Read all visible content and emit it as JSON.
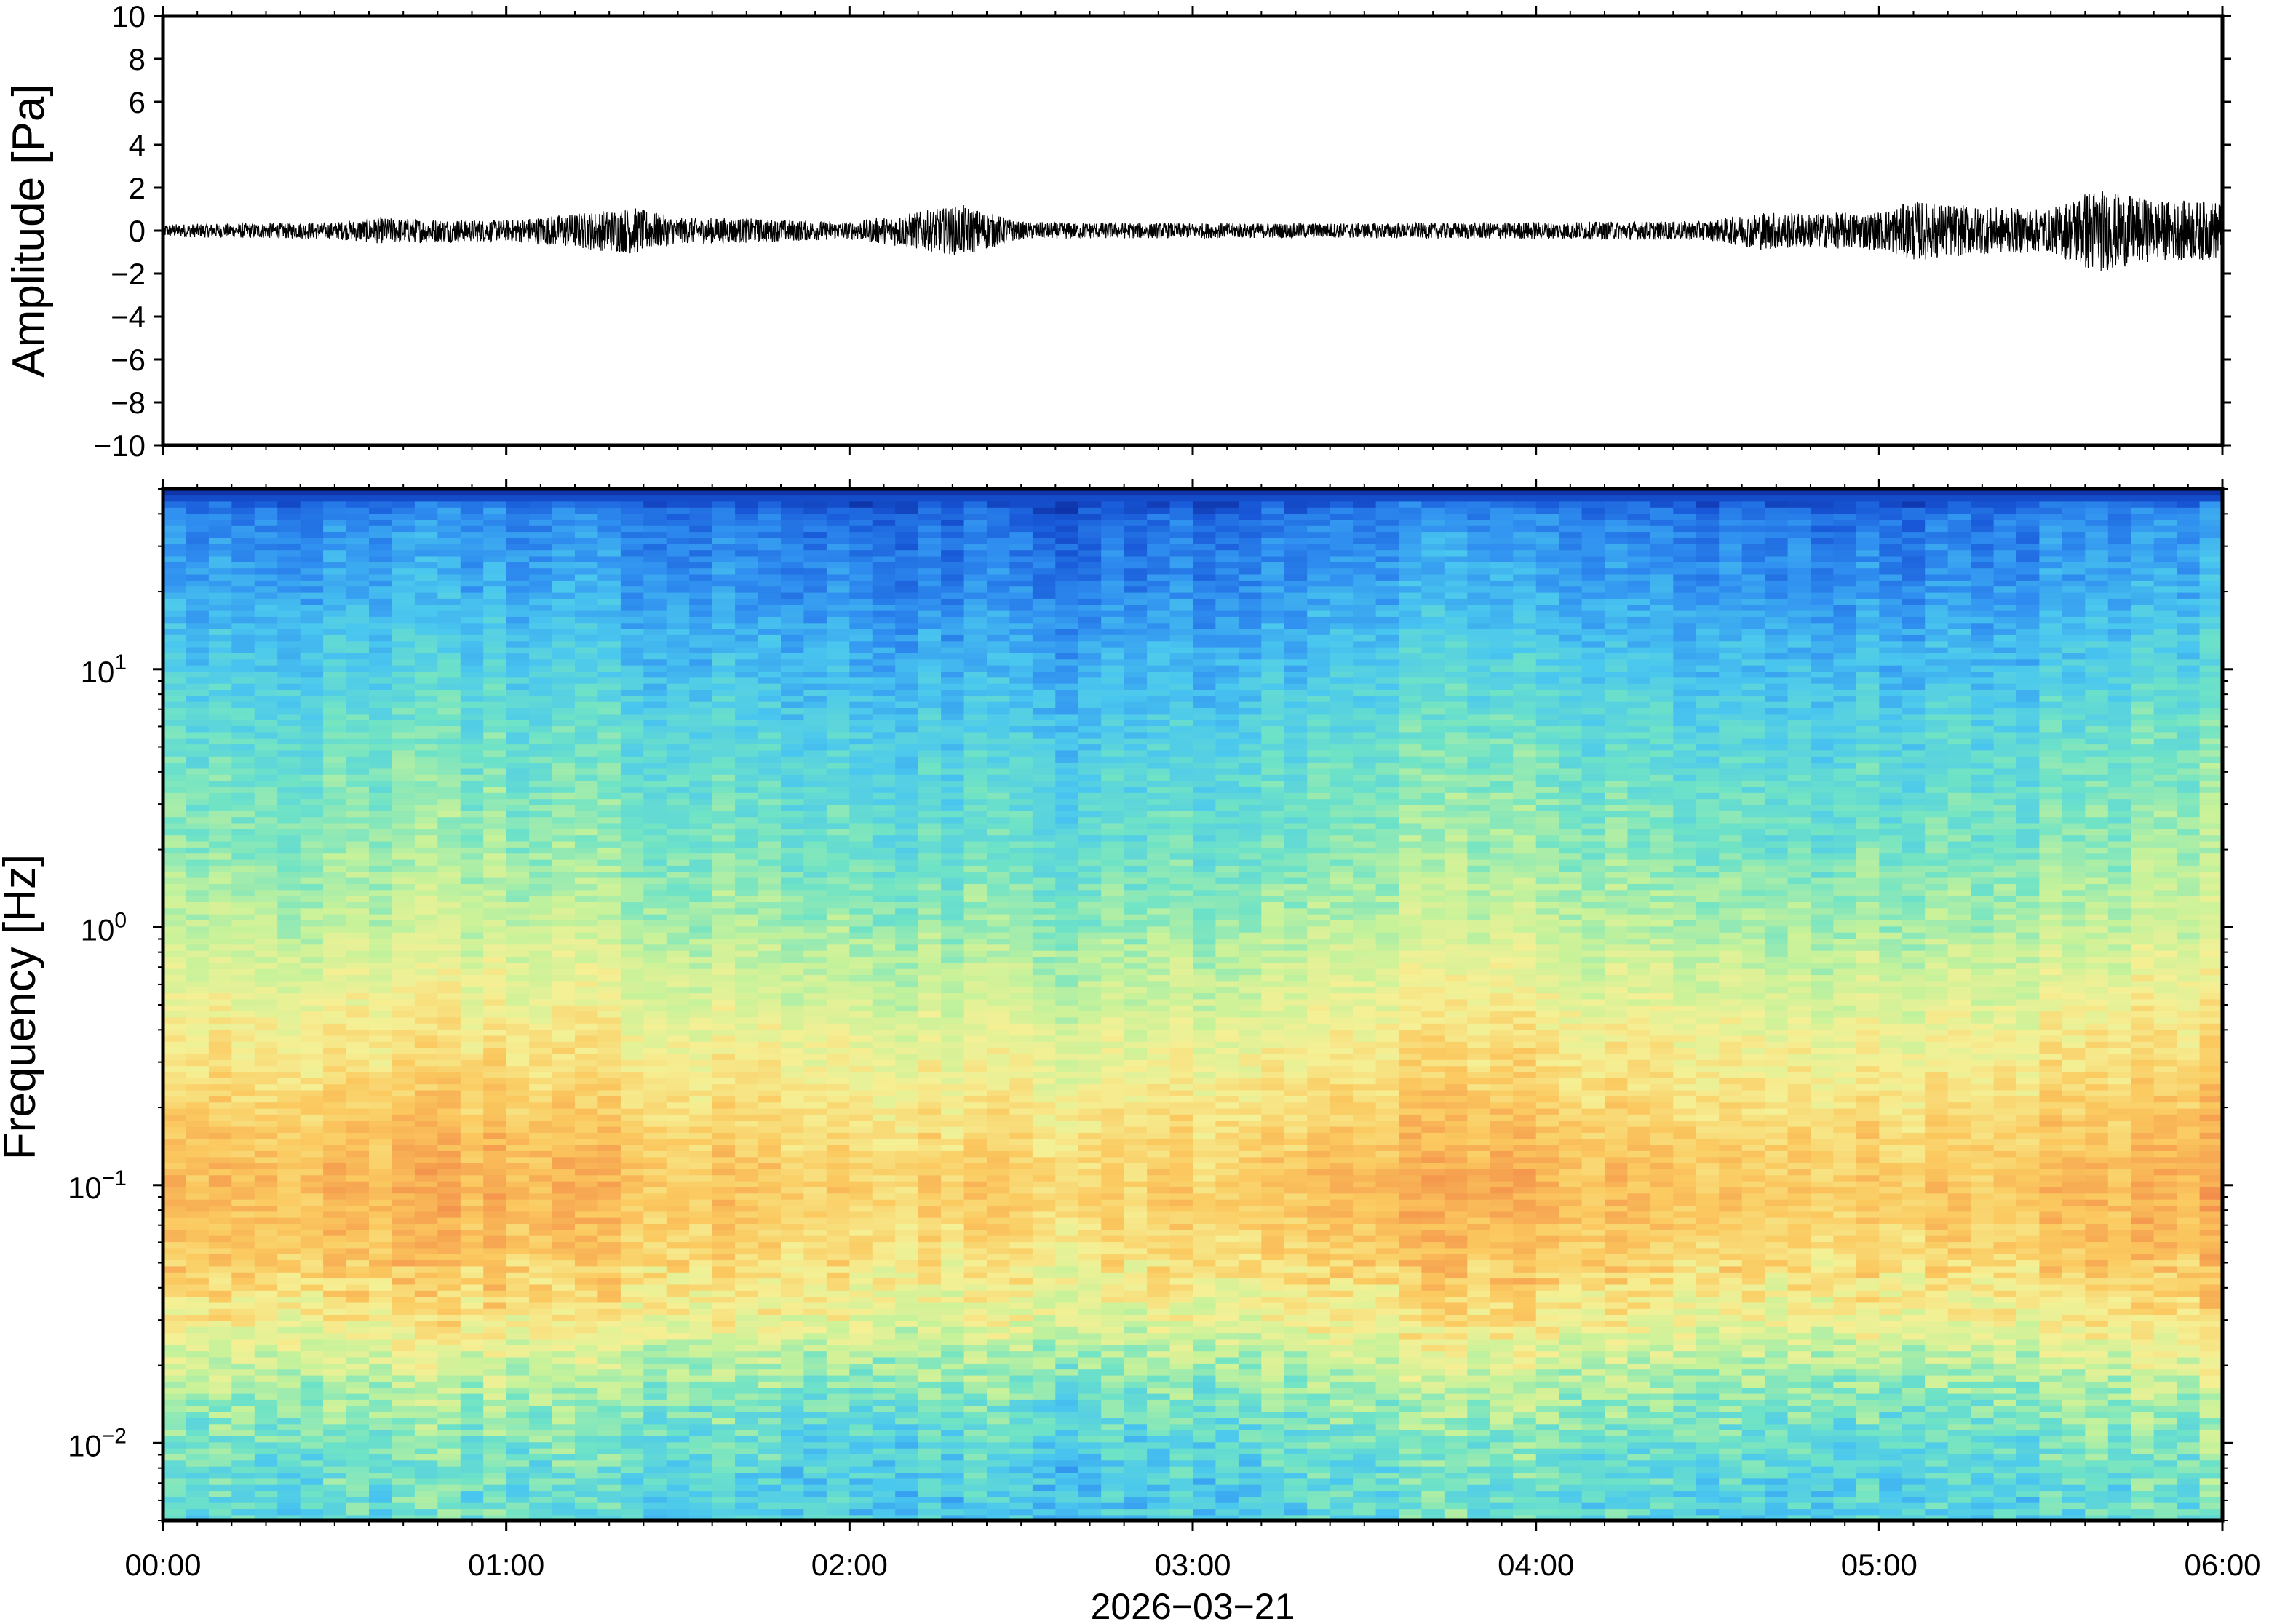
{
  "chart_data": [
    {
      "type": "line",
      "ylabel": "Amplitude [Pa]",
      "ylim": [
        -10,
        10
      ],
      "yticks": [
        "10",
        "8",
        "6",
        "4",
        "2",
        "0",
        "−2",
        "−4",
        "−6",
        "−8",
        "−10"
      ],
      "ytick_values": [
        10,
        8,
        6,
        4,
        2,
        0,
        -2,
        -4,
        -6,
        -8,
        -10
      ],
      "x_range_hours": [
        0,
        6
      ],
      "series": [
        {
          "time_h": [
            0.0,
            0.5,
            0.62,
            1.0,
            1.37,
            1.5,
            1.66,
            2.0,
            2.33,
            2.5,
            3.0,
            3.5,
            4.0,
            4.5,
            4.66,
            4.8,
            5.0,
            5.1,
            5.3,
            5.5,
            5.62,
            5.8,
            6.0
          ],
          "envelope_pa": [
            0.3,
            0.4,
            0.6,
            0.5,
            1.1,
            0.6,
            0.6,
            0.4,
            1.2,
            0.4,
            0.35,
            0.35,
            0.4,
            0.45,
            0.9,
            0.8,
            0.9,
            1.4,
            1.1,
            1.0,
            2.0,
            1.4,
            1.4
          ]
        }
      ],
      "grid": false
    },
    {
      "type": "heatmap",
      "ylabel": "Frequency [Hz]",
      "yscale": "log",
      "ylim": [
        0.005,
        50
      ],
      "yticks": [
        {
          "value": 10,
          "base": "10",
          "exp": "1"
        },
        {
          "value": 1,
          "base": "10",
          "exp": "0"
        },
        {
          "value": 0.1,
          "base": "10",
          "exp": "−1"
        },
        {
          "value": 0.01,
          "base": "10",
          "exp": "−2"
        }
      ],
      "colormap": [
        "#0a1f8f",
        "#1858d8",
        "#2f8ef0",
        "#4ac7ef",
        "#6fe3c6",
        "#c6f29a",
        "#f5f095",
        "#fbc95f",
        "#f59a4d",
        "#e8514a"
      ],
      "profile_freq_hz": [
        0.005,
        0.008,
        0.012,
        0.02,
        0.03,
        0.05,
        0.08,
        0.1,
        0.15,
        0.25,
        0.5,
        1,
        2,
        5,
        10,
        20,
        40,
        48,
        50
      ],
      "profile_level": [
        0.38,
        0.4,
        0.45,
        0.55,
        0.66,
        0.74,
        0.78,
        0.79,
        0.76,
        0.7,
        0.62,
        0.53,
        0.46,
        0.4,
        0.33,
        0.25,
        0.18,
        0.06,
        0.0
      ],
      "grid": false
    }
  ],
  "xaxis": {
    "ticks": [
      "00:00",
      "01:00",
      "02:00",
      "03:00",
      "04:00",
      "05:00",
      "06:00"
    ],
    "tick_hours": [
      0,
      1,
      2,
      3,
      4,
      5,
      6
    ],
    "date_label": "2026−03−21"
  }
}
